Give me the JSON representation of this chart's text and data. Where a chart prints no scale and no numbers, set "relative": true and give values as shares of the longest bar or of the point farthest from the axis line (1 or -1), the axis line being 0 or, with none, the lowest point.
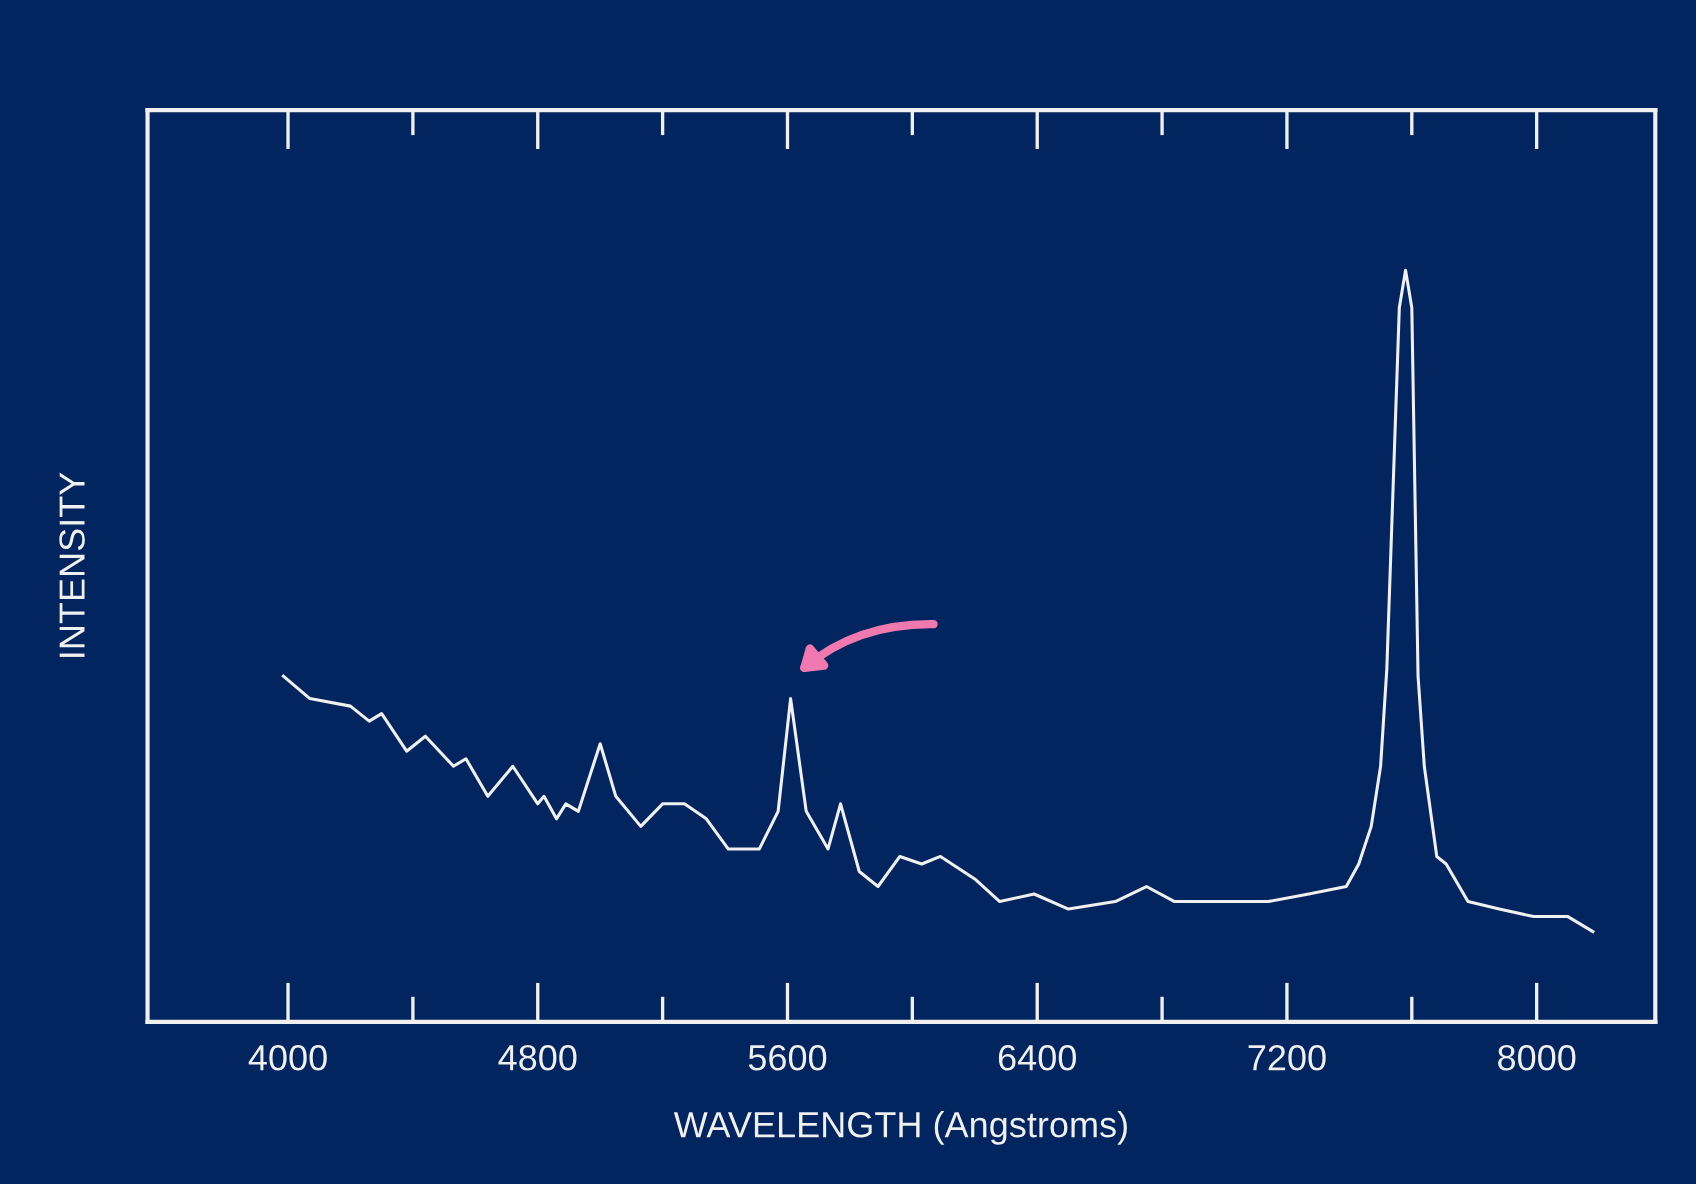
{
  "chart_data": {
    "type": "line",
    "relative": true,
    "xlabel": "WAVELENGTH (Angstroms)",
    "ylabel": "INTENSITY",
    "xlim": [
      3550,
      8380
    ],
    "xticks": [
      4000,
      {
        "value": 4400,
        "label": null
      },
      4800,
      {
        "value": 5200,
        "label": null
      },
      5600,
      {
        "value": 6000,
        "label": null
      },
      6400,
      {
        "value": 6800,
        "label": null
      },
      7200,
      {
        "value": 7600,
        "label": null
      },
      8000
    ],
    "grid": false,
    "legend": false,
    "marker": "none",
    "line_style": "solid",
    "series": [
      {
        "color": "#f0f0f0",
        "x": [
          3985,
          4070,
          4200,
          4260,
          4300,
          4380,
          4440,
          4530,
          4570,
          4640,
          4720,
          4800,
          4820,
          4860,
          4890,
          4930,
          5000,
          5050,
          5130,
          5200,
          5270,
          5340,
          5410,
          5510,
          5570,
          5610,
          5660,
          5730,
          5770,
          5830,
          5890,
          5960,
          6030,
          6090,
          6200,
          6280,
          6390,
          6500,
          6650,
          6750,
          6840,
          6970,
          7140,
          7270,
          7390,
          7430,
          7470,
          7500,
          7520,
          7560,
          7580,
          7600,
          7620,
          7640,
          7680,
          7710,
          7780,
          7880,
          7990,
          8100,
          8180
        ],
        "values": [
          0.46,
          0.43,
          0.42,
          0.4,
          0.41,
          0.36,
          0.38,
          0.34,
          0.35,
          0.3,
          0.34,
          0.29,
          0.3,
          0.27,
          0.29,
          0.28,
          0.37,
          0.3,
          0.26,
          0.29,
          0.29,
          0.27,
          0.23,
          0.23,
          0.28,
          0.43,
          0.28,
          0.23,
          0.29,
          0.2,
          0.18,
          0.22,
          0.21,
          0.22,
          0.19,
          0.16,
          0.17,
          0.15,
          0.16,
          0.18,
          0.16,
          0.16,
          0.16,
          0.17,
          0.18,
          0.21,
          0.26,
          0.34,
          0.47,
          0.95,
          1.0,
          0.95,
          0.46,
          0.34,
          0.22,
          0.21,
          0.16,
          0.15,
          0.14,
          0.14,
          0.12
        ]
      }
    ]
  }
}
